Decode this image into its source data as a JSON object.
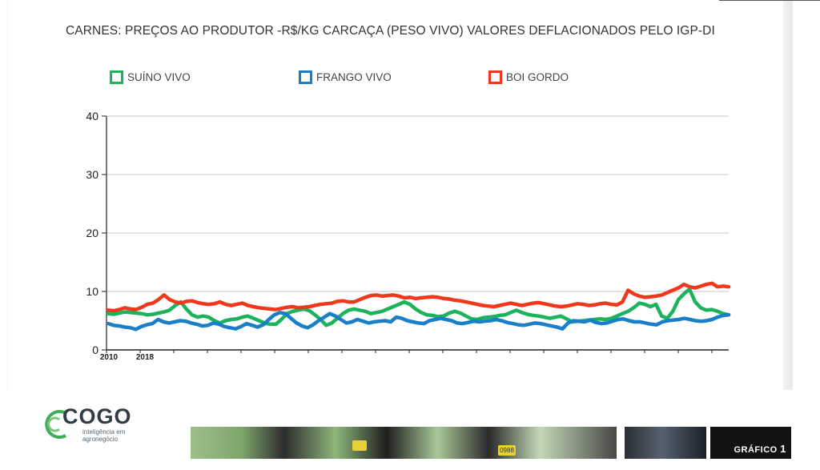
{
  "chart_data": {
    "type": "line",
    "title": "CARNES: PREÇOS AO PRODUTOR -R$/KG CARCAÇA (PESO VIVO) VALORES DEFLACIONADOS PELO IGP-DI",
    "xlabel": "",
    "ylabel": "",
    "ylim": [
      0,
      40
    ],
    "yticks": [
      0,
      10,
      20,
      30,
      40
    ],
    "x_tick_labels": [
      "2010",
      "2018"
    ],
    "grid": "horizontal",
    "legend_position": "top",
    "series": [
      {
        "name": "SUÍNO VIVO",
        "color": "#1cb35c",
        "values": [
          6.2,
          6.1,
          6.3,
          6.5,
          6.4,
          6.3,
          6.2,
          6.0,
          6.1,
          6.3,
          6.5,
          6.8,
          7.6,
          8.2,
          7.0,
          6.0,
          5.6,
          5.8,
          5.6,
          5.0,
          4.6,
          5.0,
          5.2,
          5.3,
          5.6,
          5.8,
          5.4,
          5.0,
          4.6,
          4.4,
          4.4,
          5.2,
          6.2,
          6.6,
          6.8,
          7.0,
          6.7,
          6.0,
          5.2,
          4.2,
          4.6,
          5.4,
          6.2,
          6.8,
          7.0,
          6.8,
          6.6,
          6.2,
          6.4,
          6.6,
          7.0,
          7.4,
          7.8,
          8.2,
          7.8,
          7.0,
          6.4,
          6.0,
          5.9,
          5.7,
          5.8,
          6.3,
          6.6,
          6.3,
          5.8,
          5.3,
          5.2,
          5.5,
          5.6,
          5.7,
          5.9,
          6.0,
          6.4,
          6.8,
          6.4,
          6.1,
          5.9,
          5.8,
          5.6,
          5.4,
          5.6,
          5.8,
          5.3,
          4.8,
          4.9,
          5.0,
          5.1,
          5.2,
          5.3,
          5.2,
          5.4,
          5.8,
          6.2,
          6.6,
          7.2,
          8.0,
          7.8,
          7.4,
          7.8,
          5.8,
          5.4,
          6.6,
          8.6,
          9.6,
          10.4,
          8.2,
          7.2,
          6.8,
          6.9,
          6.6,
          6.2,
          6.0
        ],
        "x_range_note": "monthly observations"
      },
      {
        "name": "FRANGO VIVO",
        "color": "#1a7fc9",
        "values": [
          4.5,
          4.2,
          4.1,
          3.9,
          3.8,
          3.5,
          4.0,
          4.3,
          4.5,
          5.2,
          4.8,
          4.6,
          4.8,
          5.0,
          4.9,
          4.6,
          4.4,
          4.1,
          4.2,
          4.6,
          4.4,
          4.0,
          3.8,
          3.6,
          4.0,
          4.5,
          4.2,
          3.9,
          4.3,
          5.2,
          6.0,
          6.4,
          6.2,
          5.4,
          4.6,
          4.1,
          3.8,
          4.3,
          5.0,
          5.6,
          6.2,
          5.8,
          5.2,
          4.6,
          4.8,
          5.2,
          4.9,
          4.6,
          4.8,
          4.9,
          5.0,
          4.8,
          5.6,
          5.4,
          5.0,
          4.8,
          4.6,
          4.5,
          5.0,
          5.2,
          5.4,
          5.2,
          5.0,
          4.6,
          4.5,
          4.7,
          4.9,
          4.8,
          4.9,
          5.0,
          5.2,
          5.0,
          4.7,
          4.5,
          4.3,
          4.2,
          4.4,
          4.6,
          4.5,
          4.3,
          4.1,
          3.9,
          3.6,
          4.6,
          5.0,
          4.9,
          4.8,
          5.1,
          4.7,
          4.5,
          4.6,
          4.9,
          5.2,
          5.3,
          5.0,
          4.8,
          4.8,
          4.6,
          4.4,
          4.3,
          4.8,
          5.0,
          5.1,
          5.2,
          5.4,
          5.2,
          5.0,
          4.9,
          5.0,
          5.2,
          5.6,
          5.9,
          6.0
        ]
      },
      {
        "name": "BOI GORDO",
        "color": "#f2381c",
        "values": [
          6.8,
          6.7,
          6.9,
          7.2,
          7.0,
          6.9,
          7.3,
          7.8,
          8.0,
          8.6,
          9.4,
          8.6,
          8.2,
          8.0,
          8.3,
          8.4,
          8.1,
          7.9,
          7.8,
          7.9,
          8.2,
          7.8,
          7.6,
          7.8,
          8.0,
          7.6,
          7.4,
          7.2,
          7.1,
          7.0,
          6.9,
          7.1,
          7.3,
          7.4,
          7.2,
          7.3,
          7.4,
          7.6,
          7.8,
          7.9,
          8.0,
          8.3,
          8.4,
          8.2,
          8.2,
          8.6,
          9.0,
          9.3,
          9.4,
          9.2,
          9.3,
          9.4,
          9.2,
          8.9,
          9.0,
          8.8,
          8.9,
          9.0,
          9.1,
          9.0,
          8.8,
          8.7,
          8.5,
          8.4,
          8.2,
          8.0,
          7.8,
          7.6,
          7.5,
          7.4,
          7.6,
          7.8,
          8.0,
          7.8,
          7.6,
          7.8,
          8.0,
          8.1,
          7.9,
          7.7,
          7.5,
          7.4,
          7.5,
          7.7,
          7.9,
          7.8,
          7.6,
          7.7,
          7.9,
          8.0,
          7.8,
          7.7,
          8.2,
          10.2,
          9.6,
          9.2,
          9.0,
          9.1,
          9.2,
          9.4,
          9.8,
          10.2,
          10.6,
          11.2,
          10.8,
          10.6,
          10.9,
          11.2,
          11.4,
          10.8,
          10.9,
          10.8
        ]
      }
    ]
  },
  "footer": {
    "logo_text": "COGO",
    "logo_subtitle": "inteligência em agronegócio",
    "tag_numbers": [
      "0988"
    ],
    "badge_label": "GRÁFICO",
    "badge_number": "1"
  }
}
